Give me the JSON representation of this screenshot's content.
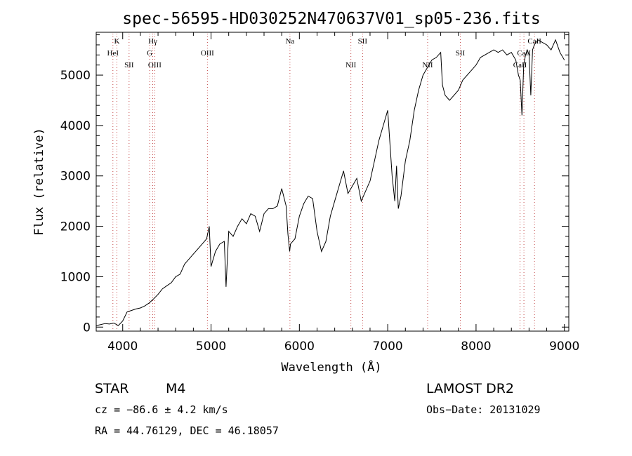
{
  "chart_data": {
    "type": "line",
    "title": "spec-56595-HD030252N470637V01_sp05-236.fits",
    "xlabel": "Wavelength (Å)",
    "ylabel": "Flux (relative)",
    "xlim": [
      3700,
      9050
    ],
    "ylim": [
      -80,
      5850
    ],
    "xticks": [
      4000,
      5000,
      6000,
      7000,
      8000,
      9000
    ],
    "yticks": [
      0,
      1000,
      2000,
      3000,
      4000,
      5000
    ],
    "series": [
      {
        "x": [
          3700,
          3750,
          3800,
          3850,
          3900,
          3950,
          4000,
          4050,
          4100,
          4150,
          4200,
          4250,
          4300,
          4350,
          4400,
          4450,
          4500,
          4550,
          4600,
          4650,
          4700,
          4750,
          4800,
          4850,
          4900,
          4950,
          4980,
          5000,
          5050,
          5100,
          5150,
          5170,
          5200,
          5250,
          5300,
          5350,
          5400,
          5450,
          5500,
          5550,
          5600,
          5650,
          5700,
          5750,
          5800,
          5850,
          5870,
          5890,
          5900,
          5950,
          6000,
          6050,
          6100,
          6150,
          6200,
          6250,
          6300,
          6350,
          6400,
          6450,
          6500,
          6550,
          6600,
          6650,
          6700,
          6750,
          6800,
          6850,
          6900,
          6950,
          7000,
          7050,
          7080,
          7100,
          7120,
          7150,
          7200,
          7250,
          7300,
          7350,
          7400,
          7450,
          7500,
          7550,
          7600,
          7620,
          7650,
          7700,
          7750,
          7800,
          7850,
          7900,
          7950,
          8000,
          8050,
          8100,
          8150,
          8200,
          8250,
          8300,
          8350,
          8400,
          8450,
          8480,
          8500,
          8520,
          8540,
          8560,
          8580,
          8600,
          8620,
          8640,
          8660,
          8700,
          8750,
          8800,
          8850,
          8900,
          8950,
          9000
        ],
        "y": [
          30,
          50,
          70,
          60,
          80,
          30,
          120,
          300,
          330,
          360,
          380,
          420,
          480,
          560,
          650,
          760,
          820,
          880,
          1000,
          1050,
          1250,
          1350,
          1450,
          1550,
          1650,
          1750,
          2000,
          1200,
          1500,
          1650,
          1700,
          800,
          1900,
          1800,
          2000,
          2150,
          2050,
          2250,
          2200,
          1900,
          2250,
          2350,
          2350,
          2400,
          2750,
          2400,
          1850,
          1500,
          1650,
          1750,
          2200,
          2450,
          2600,
          2550,
          1900,
          1500,
          1700,
          2200,
          2500,
          2800,
          3100,
          2650,
          2800,
          2950,
          2500,
          2700,
          2900,
          3300,
          3700,
          4000,
          4300,
          3000,
          2500,
          3200,
          2350,
          2600,
          3300,
          3700,
          4300,
          4700,
          5000,
          5150,
          5300,
          5350,
          5450,
          4800,
          4600,
          4500,
          4600,
          4700,
          4900,
          5000,
          5100,
          5200,
          5350,
          5400,
          5450,
          5500,
          5450,
          5500,
          5400,
          5450,
          5300,
          5000,
          4900,
          4200,
          5200,
          5400,
          5500,
          5400,
          4600,
          5500,
          5600,
          5700,
          5650,
          5600,
          5500,
          5700,
          5450,
          5300
        ]
      }
    ],
    "line_labels": [
      {
        "x": 3934,
        "text": "K",
        "row": 0
      },
      {
        "x": 3889,
        "text": "HeI",
        "row": 1
      },
      {
        "x": 4072,
        "text": "SII",
        "row": 2
      },
      {
        "x": 4340,
        "text": "Hγ",
        "row": 0
      },
      {
        "x": 4305,
        "text": "G",
        "row": 1
      },
      {
        "x": 4363,
        "text": "OIII",
        "row": 2
      },
      {
        "x": 4959,
        "text": "OIII",
        "row": 1
      },
      {
        "x": 5893,
        "text": "Na",
        "row": 0
      },
      {
        "x": 6583,
        "text": "NII",
        "row": 2
      },
      {
        "x": 6716,
        "text": "SII",
        "row": 0
      },
      {
        "x": 7452,
        "text": "NII",
        "row": 2
      },
      {
        "x": 7822,
        "text": "SII",
        "row": 1
      },
      {
        "x": 8498,
        "text": "CaII",
        "row": 2
      },
      {
        "x": 8542,
        "text": "CaII",
        "row": 1
      },
      {
        "x": 8662,
        "text": "CaII",
        "row": 0
      }
    ],
    "line_marker_color": "#c44a4a",
    "grid": false,
    "legend": "none"
  },
  "info": {
    "object_class": "STAR",
    "subclass": "M4",
    "survey": "LAMOST DR2",
    "cz": "cz = −86.6 ± 4.2 km/s",
    "obs_date": "Obs−Date: 20131029",
    "coords": "RA =  44.76129, DEC =  46.18057"
  }
}
